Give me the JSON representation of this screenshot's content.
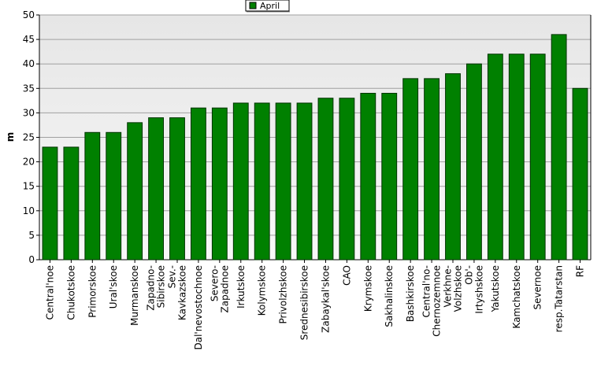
{
  "chart_data": {
    "type": "bar",
    "categories": [
      "Central'noe",
      "Chukotskoe",
      "Primorskoe",
      "Ural'skoe",
      "Murmanskoe",
      "Zapadno-\nSibirskoe",
      "Sev.-\nKavkazskoe",
      "Dal'nevostochnoe",
      "Severo-\nZapadnoe",
      "Irkutskoe",
      "Kolymskoe",
      "Privolzhskoe",
      "Srednesibirskoe",
      "Zabaykal'skoe",
      "CAO",
      "Krymskoe",
      "Sakhalinskoe",
      "Bashkirskoe",
      "Central'no-\nChernozemnoe",
      "Verkhne-\nVolzhskoe",
      "Ob'-\nIrtyshskoe",
      "Yakutskoe",
      "Kamchatskoe",
      "Severnoe",
      "resp.Tatarstan",
      "RF"
    ],
    "series": [
      {
        "name": "April",
        "color": "#008000",
        "values": [
          23,
          23,
          26,
          26,
          28,
          29,
          29,
          31,
          31,
          32,
          32,
          32,
          32,
          33,
          33,
          34,
          34,
          37,
          37,
          38,
          40,
          42,
          42,
          42,
          46,
          35
        ]
      }
    ],
    "y_label": "m",
    "ylim": [
      0,
      50
    ],
    "yticks": [
      0,
      5,
      10,
      15,
      20,
      25,
      30,
      35,
      40,
      45,
      50
    ],
    "grid": true,
    "legend": "top"
  }
}
